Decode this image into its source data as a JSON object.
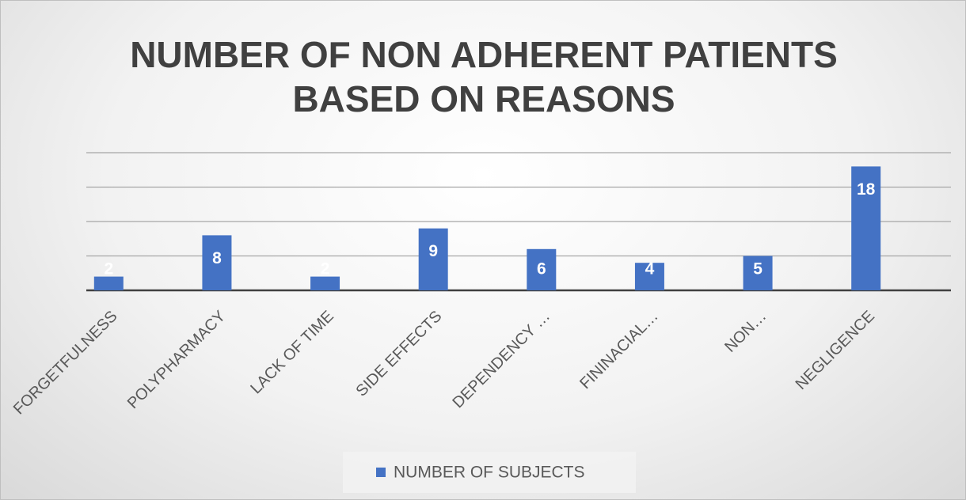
{
  "chart_data": {
    "type": "bar",
    "title": "NUMBER OF NON ADHERENT PATIENTS BASED ON REASONS",
    "categories": [
      "FORGETFULNESS",
      "POLYPHARMACY",
      "LACK OF TIME",
      "SIDE EFFECTS",
      "DEPENDENCY …",
      "FININACIAL…",
      "NON…",
      "NEGLIGENCE"
    ],
    "series": [
      {
        "name": "NUMBER OF SUBJECTS",
        "color": "#4472c4",
        "values": [
          2,
          8,
          2,
          9,
          6,
          4,
          5,
          18
        ]
      }
    ],
    "ylim": [
      0,
      20
    ],
    "yticks": [
      0,
      5,
      10,
      15,
      20
    ],
    "grid": true,
    "legend": "bottom"
  }
}
